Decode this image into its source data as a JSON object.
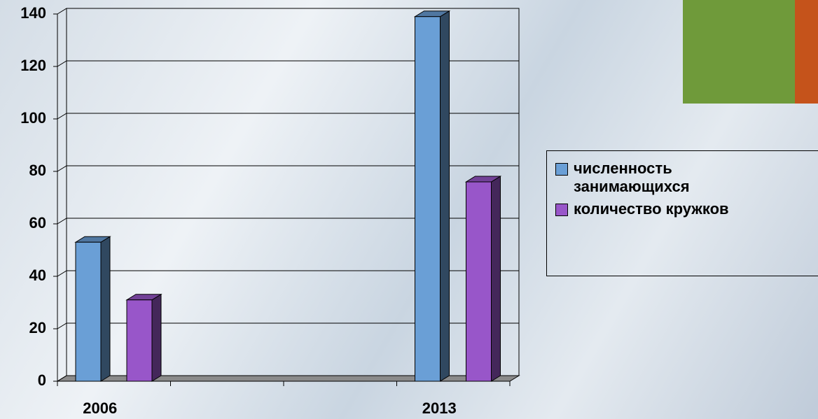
{
  "chart_data": {
    "type": "bar3d",
    "categories": [
      "2006",
      null,
      null,
      "2013"
    ],
    "series": [
      {
        "name": "численность занимающихся",
        "color": "#6a9fd6",
        "values": [
          53,
          null,
          null,
          139
        ]
      },
      {
        "name": "количество кружков",
        "color": "#9856c9",
        "values": [
          31,
          null,
          null,
          76
        ]
      }
    ],
    "ylim": [
      0,
      140
    ],
    "yticks": [
      0,
      20,
      40,
      60,
      80,
      100,
      120,
      140
    ],
    "grid": true,
    "legend": "right"
  }
}
